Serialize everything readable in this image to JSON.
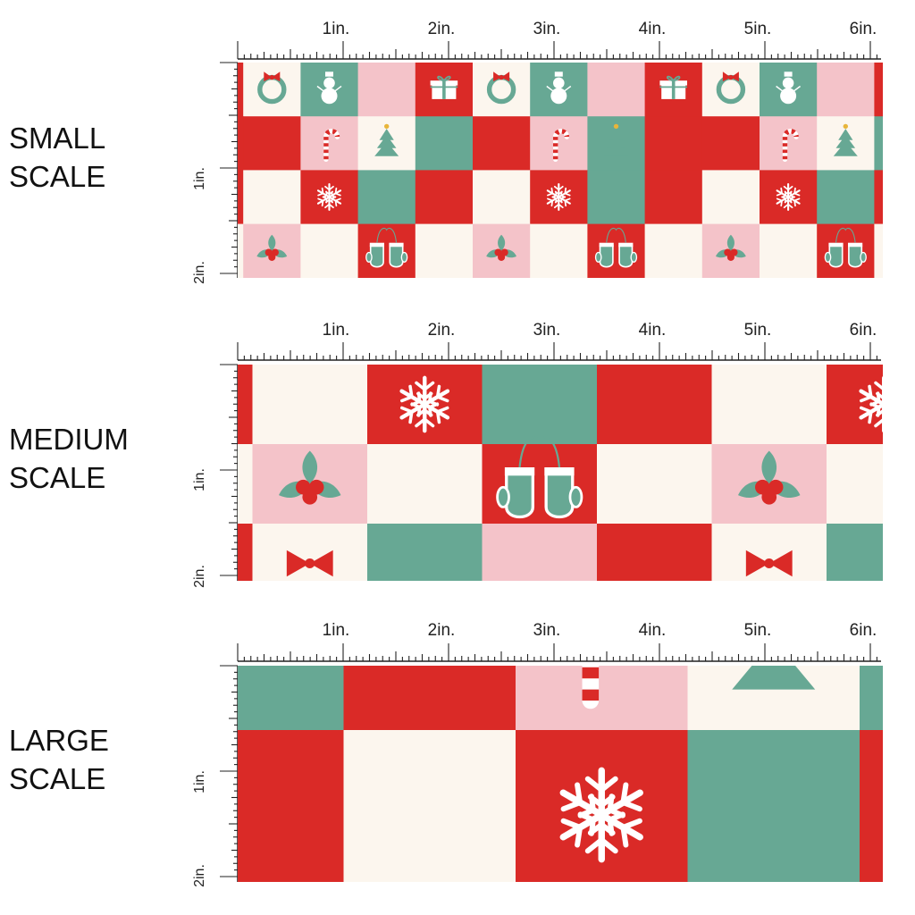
{
  "colors": {
    "red": "#da2a27",
    "green": "#67a894",
    "pink": "#f4c3c9",
    "cream": "#fcf6ee",
    "white": "#ffffff",
    "gold": "#e8b53a",
    "ruler": "#222222"
  },
  "inch_labels": [
    "1in.",
    "2in.",
    "3in.",
    "4in.",
    "5in.",
    "6in."
  ],
  "vertical_labels": [
    "1in.",
    "2in."
  ],
  "scales": [
    {
      "line1": "SMALL",
      "line2": "SCALE",
      "motifs": [
        "wreath-icon",
        "snowman-icon",
        "gift-icon",
        "candy-cane-icon",
        "tree-icon",
        "snowflake-icon",
        "holly-icon",
        "mittens-icon"
      ]
    },
    {
      "line1": "MEDIUM",
      "line2": "SCALE",
      "motifs": [
        "snowflake-icon",
        "holly-icon",
        "mittens-icon",
        "bow-icon"
      ]
    },
    {
      "line1": "LARGE",
      "line2": "SCALE",
      "motifs": [
        "candy-cane-icon",
        "tree-icon",
        "snowflake-icon"
      ]
    }
  ]
}
